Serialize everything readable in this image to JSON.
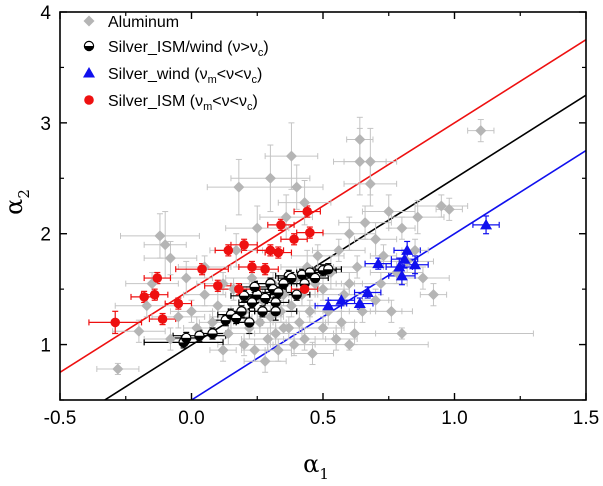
{
  "chart_data": {
    "type": "scatter",
    "xlabel": "α",
    "xlabel_sub": "1",
    "ylabel": "α",
    "ylabel_sub": "2",
    "xlim": [
      -0.5,
      1.5
    ],
    "ylim": [
      0.5,
      4.0
    ],
    "x_ticks": [
      -0.5,
      0.0,
      0.5,
      1.0,
      1.5
    ],
    "x_tick_labels": [
      "-0.5",
      "0.0",
      "0.5",
      "1.0",
      "1.5"
    ],
    "y_ticks": [
      1,
      2,
      3,
      4
    ],
    "y_tick_labels": [
      "1",
      "2",
      "3",
      "4"
    ],
    "legend_position": "top-left",
    "legend": [
      {
        "label": "Aluminum",
        "color": "#b5b5b5",
        "marker": "diamond"
      },
      {
        "label": "Silver_ISM/wind (ν>ν",
        "sub": "c",
        "tail": ")",
        "color": "#000000",
        "marker": "half-circle"
      },
      {
        "label": "Silver_wind (ν",
        "sub": "m",
        "tail": "<ν<ν",
        "sub2": "c",
        "tail2": ")",
        "color": "#1010ee",
        "marker": "triangle"
      },
      {
        "label": "Silver_ISM (ν",
        "sub": "m",
        "tail": "<ν<ν",
        "sub2": "c",
        "tail2": ")",
        "color": "#ee1010",
        "marker": "circle"
      }
    ],
    "lines": [
      {
        "name": "red",
        "color": "#ee1010",
        "x": [
          -0.5,
          1.5
        ],
        "y": [
          0.75,
          3.75
        ]
      },
      {
        "name": "black",
        "color": "#000000",
        "x": [
          -0.33,
          1.5
        ],
        "y": [
          0.5,
          3.25
        ]
      },
      {
        "name": "blue",
        "color": "#1010ee",
        "x": [
          0.0,
          1.5
        ],
        "y": [
          0.5,
          2.75
        ]
      }
    ],
    "series": [
      {
        "name": "Aluminum",
        "color": "#b5b5b5",
        "marker": "diamond",
        "points": [
          [
            -0.28,
            0.78,
            0.08,
            0.05
          ],
          [
            -0.2,
            1.12,
            0.1,
            0.1
          ],
          [
            -0.17,
            1.35,
            0.12,
            0.1
          ],
          [
            -0.15,
            1.55,
            0.1,
            0.1
          ],
          [
            -0.12,
            1.98,
            0.15,
            0.2
          ],
          [
            -0.1,
            1.9,
            0.08,
            0.3
          ],
          [
            -0.08,
            1.78,
            0.1,
            0.15
          ],
          [
            -0.08,
            1.05,
            0.1,
            0.1
          ],
          [
            -0.05,
            1.25,
            0.1,
            0.1
          ],
          [
            -0.02,
            1.6,
            0.1,
            0.15
          ],
          [
            0.0,
            1.3,
            0.08,
            0.1
          ],
          [
            0.02,
            1.15,
            0.05,
            0.1
          ],
          [
            0.05,
            1.45,
            0.08,
            0.1
          ],
          [
            0.05,
            1.7,
            0.1,
            0.1
          ],
          [
            0.08,
            1.2,
            0.05,
            0.1
          ],
          [
            0.1,
            1.35,
            0.1,
            0.15
          ],
          [
            0.12,
            1.55,
            0.1,
            0.1
          ],
          [
            0.12,
            0.95,
            0.05,
            0.1
          ],
          [
            0.14,
            1.1,
            0.1,
            0.1
          ],
          [
            0.15,
            1.25,
            0.08,
            0.1
          ],
          [
            0.16,
            1.5,
            0.05,
            0.1
          ],
          [
            0.17,
            1.85,
            0.1,
            0.15
          ],
          [
            0.18,
            2.42,
            0.12,
            0.25
          ],
          [
            0.2,
            1.0,
            0.1,
            0.1
          ],
          [
            0.2,
            1.3,
            0.05,
            0.1
          ],
          [
            0.22,
            1.15,
            0.08,
            0.1
          ],
          [
            0.23,
            1.6,
            0.1,
            0.1
          ],
          [
            0.24,
            0.95,
            0.05,
            0.1
          ],
          [
            0.25,
            2.05,
            0.12,
            0.2
          ],
          [
            0.26,
            1.2,
            0.1,
            0.1
          ],
          [
            0.27,
            1.4,
            0.05,
            0.1
          ],
          [
            0.28,
            0.85,
            0.08,
            0.1
          ],
          [
            0.29,
            1.05,
            0.1,
            0.1
          ],
          [
            0.3,
            2.5,
            0.15,
            0.3
          ],
          [
            0.3,
            1.25,
            0.05,
            0.1
          ],
          [
            0.31,
            1.55,
            0.08,
            0.1
          ],
          [
            0.32,
            1.1,
            0.1,
            0.1
          ],
          [
            0.33,
            0.95,
            0.05,
            0.1
          ],
          [
            0.34,
            1.3,
            0.1,
            0.1
          ],
          [
            0.35,
            1.45,
            0.08,
            0.1
          ],
          [
            0.36,
            2.15,
            0.1,
            0.2
          ],
          [
            0.37,
            1.15,
            0.05,
            0.1
          ],
          [
            0.38,
            1.35,
            0.1,
            0.1
          ],
          [
            0.38,
            2.7,
            0.1,
            0.3
          ],
          [
            0.39,
            1.0,
            0.08,
            0.1
          ],
          [
            0.4,
            1.6,
            0.05,
            0.1
          ],
          [
            0.4,
            2.42,
            0.1,
            0.2
          ],
          [
            0.41,
            1.2,
            0.1,
            0.1
          ],
          [
            0.42,
            1.45,
            0.05,
            0.1
          ],
          [
            0.43,
            1.05,
            0.08,
            0.1
          ],
          [
            0.43,
            2.28,
            0.1,
            0.2
          ],
          [
            0.44,
            1.7,
            0.1,
            0.15
          ],
          [
            0.45,
            1.3,
            0.05,
            0.1
          ],
          [
            0.46,
            0.92,
            0.08,
            0.1
          ],
          [
            0.47,
            1.55,
            0.1,
            0.1
          ],
          [
            0.48,
            1.8,
            0.1,
            0.1
          ],
          [
            0.5,
            1.15,
            0.08,
            0.1
          ],
          [
            0.5,
            1.5,
            0.1,
            0.1
          ],
          [
            0.52,
            1.3,
            0.05,
            0.1
          ],
          [
            0.53,
            1.65,
            0.1,
            0.15
          ],
          [
            0.55,
            1.05,
            0.08,
            0.1
          ],
          [
            0.56,
            1.85,
            0.1,
            0.1
          ],
          [
            0.57,
            1.2,
            0.05,
            0.1
          ],
          [
            0.58,
            1.45,
            0.1,
            0.1
          ],
          [
            0.6,
            1.55,
            0.05,
            0.1
          ],
          [
            0.6,
            2.0,
            0.1,
            0.15
          ],
          [
            0.62,
            1.1,
            0.08,
            0.1
          ],
          [
            0.63,
            1.7,
            0.1,
            0.1
          ],
          [
            0.64,
            2.65,
            0.1,
            0.3
          ],
          [
            0.64,
            2.85,
            0.05,
            0.2
          ],
          [
            0.65,
            1.3,
            0.05,
            0.1
          ],
          [
            0.66,
            2.1,
            0.1,
            0.15
          ],
          [
            0.68,
            2.45,
            0.1,
            0.2
          ],
          [
            0.68,
            2.65,
            0.1,
            0.3
          ],
          [
            0.7,
            1.95,
            0.08,
            0.15
          ],
          [
            0.7,
            1.4,
            0.05,
            0.1
          ],
          [
            0.72,
            1.55,
            0.1,
            0.1
          ],
          [
            0.73,
            1.8,
            0.05,
            0.1
          ],
          [
            0.75,
            2.2,
            0.1,
            0.15
          ],
          [
            0.76,
            1.3,
            0.08,
            0.1
          ],
          [
            0.78,
            1.65,
            0.1,
            0.1
          ],
          [
            0.8,
            2.05,
            0.05,
            0.1
          ],
          [
            0.82,
            1.75,
            0.1,
            0.1
          ],
          [
            0.85,
            1.85,
            0.05,
            0.1
          ],
          [
            0.86,
            2.15,
            0.1,
            0.15
          ],
          [
            0.88,
            1.6,
            0.1,
            0.1
          ],
          [
            0.92,
            1.45,
            0.05,
            0.1
          ],
          [
            0.95,
            2.25,
            0.1,
            0.1
          ],
          [
            0.98,
            2.22,
            0.05,
            0.1
          ],
          [
            1.1,
            2.93,
            0.05,
            0.1
          ],
          [
            0.35,
            1.15,
            0.2,
            0.05
          ],
          [
            0.45,
            1.3,
            0.35,
            0.05
          ],
          [
            0.6,
            1.0,
            0.3,
            0.05
          ],
          [
            0.8,
            1.1,
            0.5,
            0.05
          ]
        ]
      },
      {
        "name": "Silver_ISM/wind",
        "color": "#000000",
        "marker": "half-circle",
        "points": [
          [
            -0.03,
            1.02,
            0.15,
            0.05
          ],
          [
            -0.02,
            1.06,
            0.05,
            0.05
          ],
          [
            0.03,
            1.08,
            0.1,
            0.05
          ],
          [
            0.08,
            1.1,
            0.05,
            0.05
          ],
          [
            0.13,
            1.22,
            0.05,
            0.05
          ],
          [
            0.15,
            1.27,
            0.05,
            0.05
          ],
          [
            0.17,
            1.24,
            0.05,
            0.05
          ],
          [
            0.19,
            1.3,
            0.05,
            0.05
          ],
          [
            0.2,
            1.44,
            0.05,
            0.05
          ],
          [
            0.22,
            1.2,
            0.05,
            0.1
          ],
          [
            0.23,
            1.38,
            0.05,
            0.05
          ],
          [
            0.25,
            1.45,
            0.05,
            0.05
          ],
          [
            0.27,
            1.3,
            0.05,
            0.05
          ],
          [
            0.28,
            1.42,
            0.05,
            0.05
          ],
          [
            0.3,
            1.55,
            0.05,
            0.05
          ],
          [
            0.31,
            1.5,
            0.05,
            0.05
          ],
          [
            0.32,
            1.38,
            0.05,
            0.05
          ],
          [
            0.33,
            1.47,
            0.05,
            0.05
          ],
          [
            0.35,
            1.55,
            0.05,
            0.05
          ],
          [
            0.37,
            1.62,
            0.05,
            0.05
          ],
          [
            0.38,
            1.6,
            0.05,
            0.05
          ],
          [
            0.4,
            1.45,
            0.05,
            0.05
          ],
          [
            0.42,
            1.63,
            0.05,
            0.05
          ],
          [
            0.43,
            1.55,
            0.05,
            0.05
          ],
          [
            0.45,
            1.65,
            0.05,
            0.05
          ],
          [
            0.47,
            1.6,
            0.05,
            0.05
          ],
          [
            0.5,
            1.67,
            0.05,
            0.05
          ],
          [
            0.52,
            1.68,
            0.05,
            0.05
          ],
          [
            0.32,
            1.3,
            0.08,
            0.08
          ],
          [
            0.24,
            1.52,
            0.05,
            0.05
          ]
        ]
      },
      {
        "name": "Silver_wind",
        "color": "#1010ee",
        "marker": "triangle",
        "points": [
          [
            0.52,
            1.35,
            0.05,
            0.05
          ],
          [
            0.57,
            1.4,
            0.05,
            0.05
          ],
          [
            0.64,
            1.37,
            0.05,
            0.05
          ],
          [
            0.67,
            1.47,
            0.05,
            0.05
          ],
          [
            0.71,
            1.73,
            0.05,
            0.05
          ],
          [
            0.79,
            1.7,
            0.05,
            0.08
          ],
          [
            0.8,
            1.62,
            0.05,
            0.08
          ],
          [
            0.81,
            1.77,
            0.05,
            0.08
          ],
          [
            0.82,
            1.85,
            0.05,
            0.08
          ],
          [
            0.85,
            1.72,
            0.05,
            0.08
          ],
          [
            1.12,
            2.08,
            0.05,
            0.08
          ]
        ]
      },
      {
        "name": "Silver_ISM",
        "color": "#ee1010",
        "marker": "circle",
        "points": [
          [
            -0.29,
            1.2,
            0.1,
            0.1
          ],
          [
            -0.18,
            1.43,
            0.05,
            0.05
          ],
          [
            -0.14,
            1.45,
            0.05,
            0.05
          ],
          [
            -0.13,
            1.6,
            0.05,
            0.05
          ],
          [
            -0.11,
            1.23,
            0.05,
            0.05
          ],
          [
            -0.05,
            1.37,
            0.05,
            0.05
          ],
          [
            0.04,
            1.68,
            0.1,
            0.05
          ],
          [
            0.1,
            1.53,
            0.05,
            0.05
          ],
          [
            0.14,
            1.85,
            0.05,
            0.05
          ],
          [
            0.18,
            1.5,
            0.08,
            0.05
          ],
          [
            0.2,
            1.9,
            0.05,
            0.05
          ],
          [
            0.23,
            1.7,
            0.05,
            0.05
          ],
          [
            0.28,
            1.68,
            0.05,
            0.05
          ],
          [
            0.3,
            1.85,
            0.05,
            0.05
          ],
          [
            0.33,
            1.83,
            0.05,
            0.05
          ],
          [
            0.34,
            2.08,
            0.05,
            0.05
          ],
          [
            0.39,
            1.95,
            0.05,
            0.05
          ],
          [
            0.44,
            2.2,
            0.05,
            0.05
          ],
          [
            0.45,
            2.01,
            0.05,
            0.05
          ],
          [
            0.43,
            1.5,
            0.05,
            0.05
          ]
        ]
      }
    ]
  }
}
